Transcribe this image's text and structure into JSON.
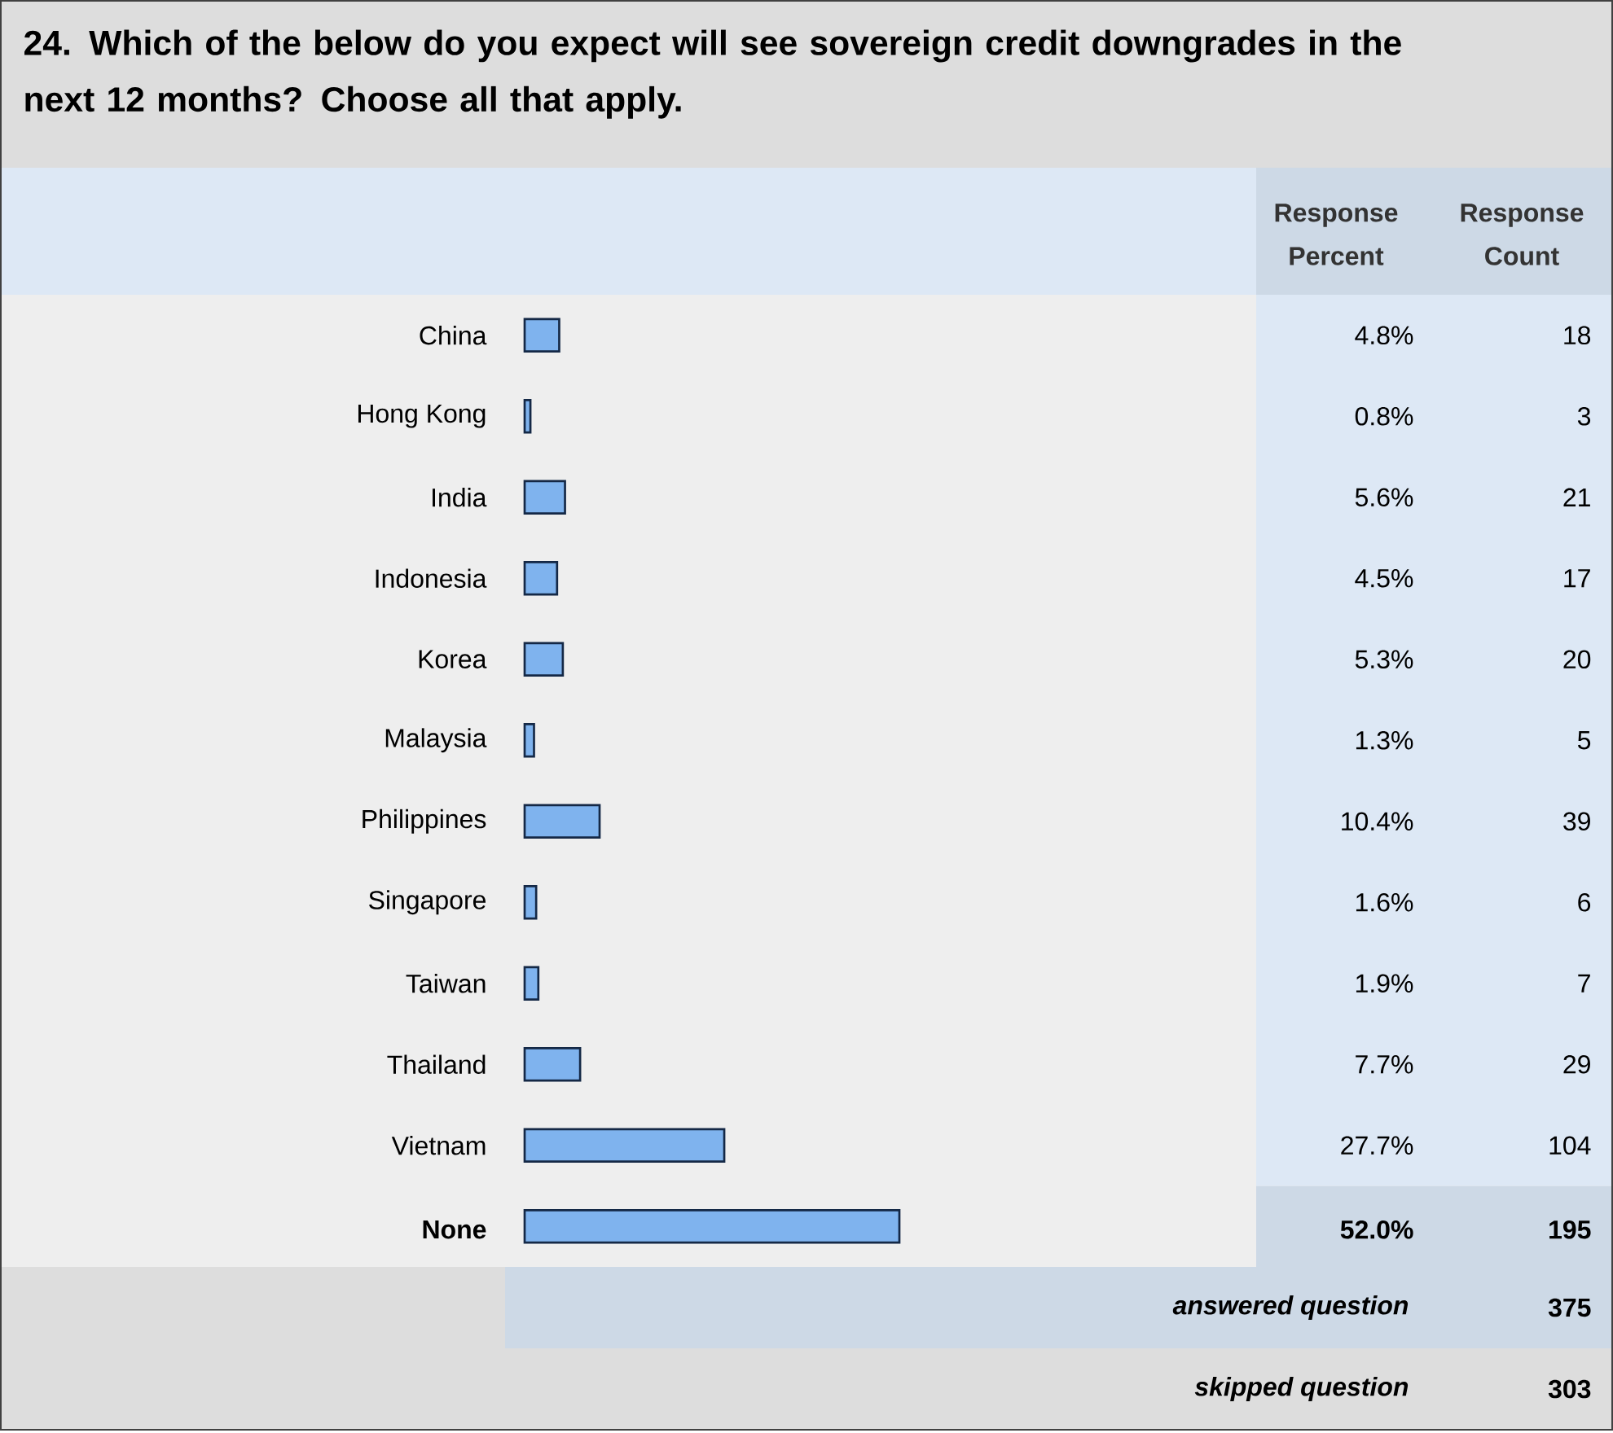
{
  "chart_data": {
    "type": "bar",
    "orientation": "horizontal",
    "title": "24. Which of the below do you expect will see sovereign credit downgrades in the next 12 months? Choose all that apply.",
    "categories": [
      "China",
      "Hong Kong",
      "India",
      "Indonesia",
      "Korea",
      "Malaysia",
      "Philippines",
      "Singapore",
      "Taiwan",
      "Thailand",
      "Vietnam",
      "None"
    ],
    "values": [
      4.8,
      0.8,
      5.6,
      4.5,
      5.3,
      1.3,
      10.4,
      1.6,
      1.9,
      7.7,
      27.7,
      52.0
    ],
    "value_labels": [
      "4.8%",
      "0.8%",
      "5.6%",
      "4.5%",
      "5.3%",
      "1.3%",
      "10.4%",
      "1.6%",
      "1.9%",
      "7.7%",
      "27.7%",
      "52.0%"
    ],
    "color": "#7fb3ee",
    "annotations": [
      "Response Percent",
      "Response Count",
      "18",
      "3",
      "21",
      "17",
      "20",
      "5",
      "39",
      "6",
      "7",
      "29",
      "104",
      "195",
      "answered question",
      "375",
      "skipped question",
      "303"
    ]
  }
}
